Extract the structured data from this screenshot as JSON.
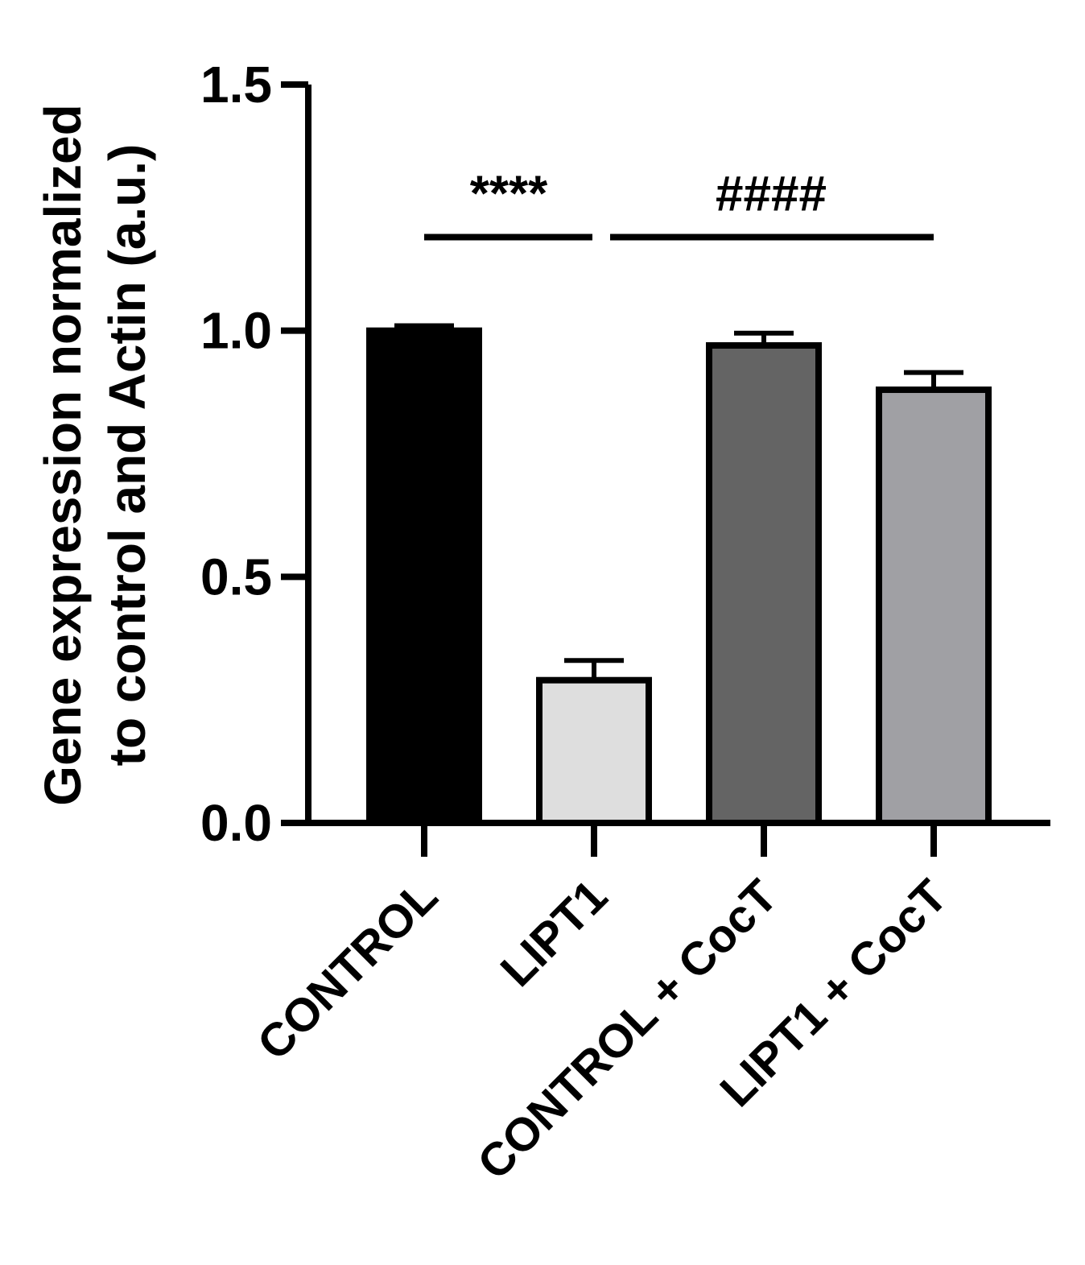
{
  "chart_data": {
    "type": "bar",
    "categories": [
      "CONTROL",
      "LIPT1",
      "CONTROL + CocT",
      "LIPT1 + CocT"
    ],
    "values": [
      1.0,
      0.29,
      0.97,
      0.88
    ],
    "errors": [
      0.01,
      0.04,
      0.025,
      0.035
    ],
    "colors": [
      "#000000",
      "#dedede",
      "#646464",
      "#a0a0a4"
    ],
    "title": "",
    "xlabel": "",
    "ylabel": [
      "Gene expression normalized",
      "to control and Actin (a.u.)"
    ],
    "ylim": [
      0,
      1.5
    ],
    "yticks": [
      0.0,
      0.5,
      1.0,
      1.5
    ],
    "ytick_labels": [
      "0.0",
      "0.5",
      "1.0",
      "1.5"
    ],
    "grid": false,
    "legend": "none",
    "annotations": [
      {
        "text": "****",
        "from": 0,
        "to": 1,
        "y": 1.19
      },
      {
        "text": "####",
        "from": 1,
        "to": 3,
        "y": 1.19
      }
    ]
  }
}
